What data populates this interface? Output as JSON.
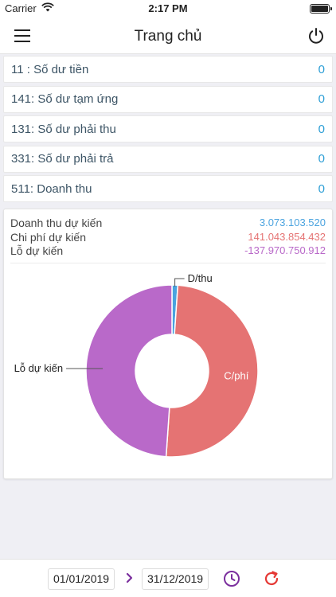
{
  "status_bar": {
    "carrier": "Carrier",
    "time": "2:17 PM"
  },
  "nav": {
    "title": "Trang chủ"
  },
  "accounts": [
    {
      "label": "11 : Số dư tiền",
      "value": "0"
    },
    {
      "label": "141: Số dư tạm ứng",
      "value": "0"
    },
    {
      "label": "131: Số dư phải thu",
      "value": "0"
    },
    {
      "label": "331: Số dư phải trả",
      "value": "0"
    },
    {
      "label": "511: Doanh thu",
      "value": "0"
    }
  ],
  "summary": {
    "revenue_label": "Doanh thu dự kiến",
    "revenue_value": "3.073.103.520",
    "cost_label": "Chi phí dự kiến",
    "cost_value": "141.043.854.432",
    "loss_label": "Lỗ dự kiến",
    "loss_value": "-137.970.750.912"
  },
  "colors": {
    "revenue": "#4aa3df",
    "cost": "#e57373",
    "loss": "#b969c9",
    "accent_purple": "#7b2f9e",
    "accent_red": "#e53935"
  },
  "chart_data": {
    "type": "pie",
    "donut": true,
    "slices": [
      {
        "label": "D/thu",
        "value": 3073103520,
        "color": "#4aa3df"
      },
      {
        "label": "C/phí",
        "value": 141043854432,
        "color": "#e57373"
      },
      {
        "label": "Lỗ dự kiến",
        "value": 137970750912,
        "color": "#b969c9"
      }
    ]
  },
  "footer": {
    "start_date": "01/01/2019",
    "end_date": "31/12/2019",
    "icons": [
      "chevron-right-icon",
      "clock-icon",
      "refresh-icon"
    ]
  }
}
